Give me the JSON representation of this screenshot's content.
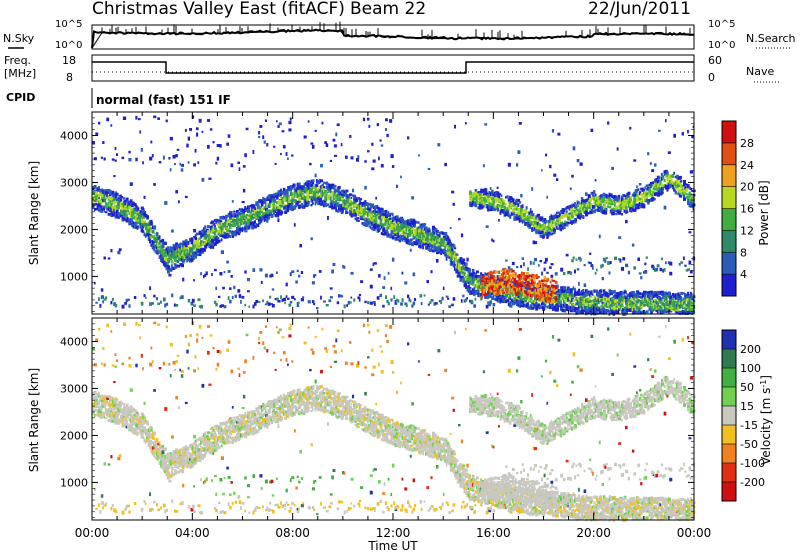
{
  "header": {
    "title": "Christmas Valley East (fitACF)",
    "beam": "Beam 22",
    "date": "22/Jun/2011"
  },
  "top_panels": {
    "nsky_label": "N.Sky",
    "nsearch_label": "N.Search",
    "freq_label": "Freq.",
    "freq_unit": "[MHz]",
    "nave_label": "Nave",
    "cpid_label": "CPID",
    "cpid_text": "normal (fast) 151 IF",
    "noise_ticks_left": [
      "10^5",
      "10^0"
    ],
    "noise_ticks_right": [
      "10^5",
      "10^0"
    ],
    "freq_ticks": [
      "18",
      "8"
    ],
    "nave_ticks": [
      "60",
      "0"
    ]
  },
  "chart_data": [
    {
      "type": "heatmap",
      "panel": "power",
      "xlabel": "",
      "ylabel": "Slant Range [km]",
      "yticks": [
        "1000",
        "2000",
        "3000",
        "4000"
      ],
      "ylim": [
        200,
        4500
      ],
      "xlim": [
        0,
        24
      ],
      "colorbar": {
        "label": "Power [dB]",
        "ticks": [
          "4",
          "8",
          "12",
          "16",
          "20",
          "24",
          "28"
        ],
        "colors": [
          "#1f1fd0",
          "#2a5db8",
          "#2f8a6a",
          "#3fae3f",
          "#b8d820",
          "#f0a020",
          "#e05010",
          "#d01010"
        ]
      }
    },
    {
      "type": "heatmap",
      "panel": "velocity",
      "xlabel": "Time UT",
      "ylabel": "Slant Range [km]",
      "yticks": [
        "1000",
        "2000",
        "3000",
        "4000"
      ],
      "ylim": [
        200,
        4500
      ],
      "xlim": [
        0,
        24
      ],
      "xticks": [
        "00:00",
        "04:00",
        "08:00",
        "12:00",
        "16:00",
        "20:00",
        "00:00"
      ],
      "colorbar": {
        "label": "Velocity [m s",
        "label_sup": "-1",
        "label_end": "]",
        "ticks": [
          "200",
          "100",
          "50",
          "15",
          "-15",
          "-50",
          "-100",
          "-200"
        ],
        "colors": [
          "#2030b0",
          "#2f7a50",
          "#40b040",
          "#70d050",
          "#c8c8c0",
          "#f0c020",
          "#f08020",
          "#e03010",
          "#d01010"
        ]
      }
    }
  ],
  "scatter_echo": {
    "main_band": [
      [
        0,
        2700
      ],
      [
        1,
        2500
      ],
      [
        2,
        2200
      ],
      [
        3,
        1350
      ],
      [
        4,
        1600
      ],
      [
        5,
        2000
      ],
      [
        6,
        2200
      ],
      [
        7,
        2450
      ],
      [
        8,
        2700
      ],
      [
        9,
        2800
      ],
      [
        10,
        2600
      ],
      [
        11,
        2300
      ],
      [
        12,
        2050
      ],
      [
        13,
        1900
      ],
      [
        14,
        1700
      ],
      [
        15,
        900
      ],
      [
        16,
        750
      ],
      [
        17,
        600
      ],
      [
        18,
        550
      ],
      [
        19,
        500
      ],
      [
        20,
        450
      ],
      [
        21,
        420
      ],
      [
        22,
        420
      ],
      [
        23,
        400
      ],
      [
        24,
        400
      ]
    ],
    "upper_band": [
      [
        15,
        2700
      ],
      [
        16,
        2600
      ],
      [
        17,
        2400
      ],
      [
        18,
        2000
      ],
      [
        19,
        2300
      ],
      [
        20,
        2600
      ],
      [
        21,
        2500
      ],
      [
        22,
        2700
      ],
      [
        23,
        3100
      ],
      [
        24,
        2600
      ]
    ],
    "hot_region": [
      [
        15.5,
        800
      ],
      [
        16.5,
        900
      ],
      [
        17.5,
        800
      ],
      [
        18.5,
        650
      ]
    ]
  }
}
